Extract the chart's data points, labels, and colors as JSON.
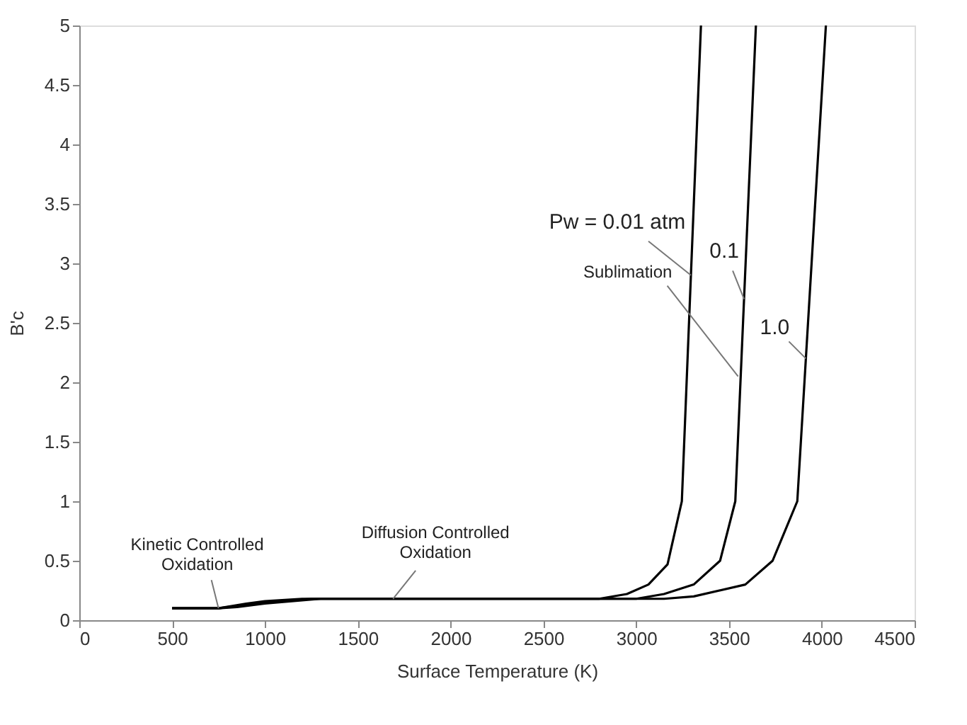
{
  "chart_data": {
    "type": "line",
    "xlabel": "Surface Temperature (K)",
    "ylabel": "B'c",
    "xlim": [
      0,
      4500
    ],
    "xticks": [
      0,
      500,
      1000,
      1500,
      2000,
      2500,
      3000,
      3500,
      4000,
      4500
    ],
    "ylim": [
      0,
      5
    ],
    "yticks": [
      0,
      0.5,
      1,
      1.5,
      2,
      2.5,
      3,
      3.5,
      4,
      4.5,
      5
    ],
    "grid": false,
    "legend": false,
    "marker": "none",
    "line_style": "solid",
    "series": [
      {
        "name": "Pw = 0.01 atm",
        "color": "#000000",
        "x": [
          500,
          750,
          900,
          1000,
          1200,
          2800,
          2950,
          3066,
          3169,
          3246,
          3349
        ],
        "values": [
          0.1,
          0.1,
          0.14,
          0.16,
          0.18,
          0.18,
          0.22,
          0.3,
          0.47,
          1.0,
          5
        ]
      },
      {
        "name": "0.1",
        "color": "#000000",
        "x": [
          500,
          750,
          900,
          1000,
          1250,
          3000,
          3150,
          3310,
          3452,
          3534,
          3645
        ],
        "values": [
          0.1,
          0.1,
          0.13,
          0.15,
          0.18,
          0.18,
          0.22,
          0.3,
          0.5,
          1.0,
          5
        ]
      },
      {
        "name": "1.0",
        "color": "#000000",
        "x": [
          500,
          750,
          850,
          1000,
          1300,
          3150,
          3310,
          3588,
          3735,
          3868,
          4022
        ],
        "values": [
          0.1,
          0.1,
          0.11,
          0.14,
          0.18,
          0.18,
          0.2,
          0.3,
          0.5,
          1.0,
          5
        ]
      }
    ],
    "annotations": [
      {
        "text": "Sublimation",
        "x": 3549,
        "y": 2.05
      },
      {
        "text": "Kinetic Controlled\nOxidation",
        "x": 750,
        "y": 0.1
      },
      {
        "text": "Diffusion Controlled\nOxidation",
        "x": 1690,
        "y": 0.18
      }
    ]
  }
}
